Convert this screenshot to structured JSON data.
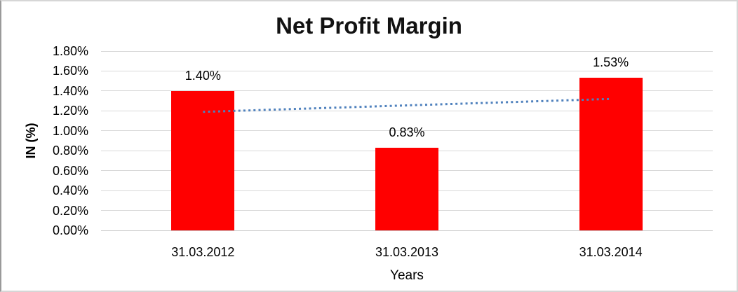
{
  "chart_data": {
    "type": "bar",
    "title": "Net Profit Margin",
    "categories": [
      "31.03.2012",
      "31.03.2013",
      "31.03.2014"
    ],
    "values": [
      1.4,
      0.83,
      1.53
    ],
    "value_labels": [
      "1.40%",
      "0.83%",
      "1.53%"
    ],
    "xlabel": "Years",
    "ylabel": "IN (%)",
    "unit": "percent",
    "ylim": [
      0,
      1.8
    ],
    "ytick_step": 0.2,
    "ytick_labels": [
      "0.00%",
      "0.20%",
      "0.40%",
      "0.60%",
      "0.80%",
      "1.00%",
      "1.20%",
      "1.40%",
      "1.60%",
      "1.80%"
    ],
    "grid": true,
    "legend": "none",
    "bar_color": "#FF0000",
    "gridline_color": "#D9D9D9",
    "trendline": {
      "type": "linear",
      "style": "dotted",
      "color": "#4F81BD",
      "start_value": 1.19,
      "end_value": 1.32
    }
  }
}
